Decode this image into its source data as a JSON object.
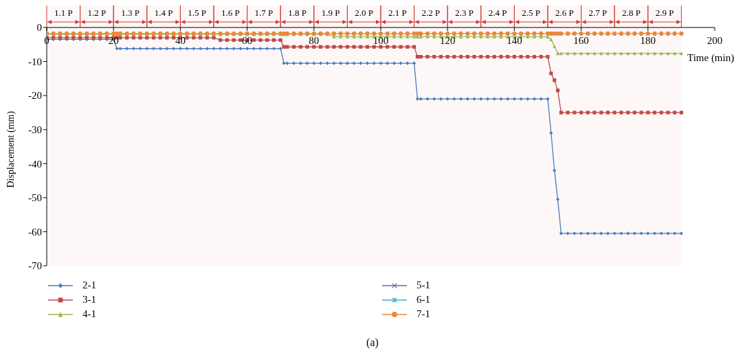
{
  "chart_data": {
    "type": "line",
    "xlabel": "Time (min)",
    "ylabel": "Displacement (mm)",
    "annotations": [
      "(a)"
    ],
    "xlim": [
      0,
      200
    ],
    "xticks": [
      0,
      20,
      40,
      60,
      80,
      100,
      120,
      140,
      160,
      180,
      200
    ],
    "ylim": [
      -70,
      0
    ],
    "yticks": [
      0,
      -10,
      -20,
      -30,
      -40,
      -50,
      -60,
      -70
    ],
    "legend": "bottom",
    "x": [
      0,
      2,
      4,
      6,
      8,
      10,
      12,
      14,
      16,
      18,
      20,
      21,
      22,
      24,
      26,
      28,
      30,
      32,
      34,
      36,
      38,
      40,
      42,
      44,
      46,
      48,
      50,
      52,
      54,
      56,
      58,
      60,
      62,
      64,
      66,
      68,
      70,
      71,
      72,
      74,
      76,
      78,
      80,
      82,
      84,
      86,
      88,
      90,
      92,
      94,
      96,
      98,
      100,
      102,
      104,
      106,
      108,
      110,
      111,
      112,
      114,
      116,
      118,
      120,
      122,
      124,
      126,
      128,
      130,
      132,
      134,
      136,
      138,
      140,
      142,
      144,
      146,
      148,
      150,
      151,
      152,
      153,
      154,
      156,
      158,
      160,
      162,
      164,
      166,
      168,
      170,
      172,
      174,
      176,
      178,
      180,
      182,
      184,
      186,
      188,
      190
    ],
    "series": [
      {
        "name": "2-1",
        "color": "#4a7ebb",
        "marker": "diamond",
        "values": [
          -3.5,
          -3.5,
          -3.5,
          -3.5,
          -3.5,
          -3.5,
          -3.5,
          -3.5,
          -3.5,
          -3.5,
          -3.5,
          -6.2,
          -6.2,
          -6.2,
          -6.2,
          -6.2,
          -6.2,
          -6.2,
          -6.2,
          -6.2,
          -6.2,
          -6.2,
          -6.2,
          -6.2,
          -6.2,
          -6.2,
          -6.2,
          -6.2,
          -6.2,
          -6.2,
          -6.2,
          -6.2,
          -6.2,
          -6.2,
          -6.2,
          -6.2,
          -6.2,
          -10.5,
          -10.5,
          -10.5,
          -10.5,
          -10.5,
          -10.5,
          -10.5,
          -10.5,
          -10.5,
          -10.5,
          -10.5,
          -10.5,
          -10.5,
          -10.5,
          -10.5,
          -10.5,
          -10.5,
          -10.5,
          -10.5,
          -10.5,
          -10.5,
          -21,
          -21,
          -21,
          -21,
          -21,
          -21,
          -21,
          -21,
          -21,
          -21,
          -21,
          -21,
          -21,
          -21,
          -21,
          -21,
          -21,
          -21,
          -21,
          -21,
          -21,
          -31,
          -42,
          -50.5,
          -60.5,
          -60.5,
          -60.5,
          -60.5,
          -60.5,
          -60.5,
          -60.5,
          -60.5,
          -60.5,
          -60.5,
          -60.5,
          -60.5,
          -60.5,
          -60.5,
          -60.5,
          -60.5,
          -60.5,
          -60.5,
          -60.5
        ]
      },
      {
        "name": "3-1",
        "color": "#be4b48",
        "marker": "square",
        "values": [
          -3,
          -3,
          -3,
          -3,
          -3,
          -3,
          -3,
          -3,
          -3,
          -3,
          -3,
          -3,
          -3,
          -3,
          -3,
          -3,
          -3,
          -3,
          -3,
          -3,
          -3,
          -3,
          -3,
          -3,
          -3,
          -3,
          -3,
          -3.7,
          -3.7,
          -3.7,
          -3.7,
          -3.7,
          -3.7,
          -3.7,
          -3.7,
          -3.7,
          -3.7,
          -5.7,
          -5.7,
          -5.7,
          -5.7,
          -5.7,
          -5.7,
          -5.7,
          -5.7,
          -5.7,
          -5.7,
          -5.7,
          -5.7,
          -5.7,
          -5.7,
          -5.7,
          -5.7,
          -5.7,
          -5.7,
          -5.7,
          -5.7,
          -5.7,
          -8.6,
          -8.6,
          -8.6,
          -8.6,
          -8.6,
          -8.6,
          -8.6,
          -8.6,
          -8.6,
          -8.6,
          -8.6,
          -8.6,
          -8.6,
          -8.6,
          -8.6,
          -8.6,
          -8.6,
          -8.6,
          -8.6,
          -8.6,
          -8.6,
          -13.5,
          -15.5,
          -18.5,
          -25,
          -25,
          -25,
          -25,
          -25,
          -25,
          -25,
          -25,
          -25,
          -25,
          -25,
          -25,
          -25,
          -25,
          -25,
          -25,
          -25,
          -25,
          -25
        ]
      },
      {
        "name": "4-1",
        "color": "#98b954",
        "marker": "triangle",
        "values": [
          -2,
          -2,
          -2,
          -2,
          -2,
          -2,
          -2,
          -2,
          -2,
          -2,
          -2,
          -2,
          -2,
          -2,
          -2,
          -2,
          -2,
          -2,
          -2,
          -2,
          -2,
          -2,
          -2,
          -2,
          -2,
          -2,
          -2,
          -2,
          -2,
          -2,
          -2,
          -2,
          -2,
          -2,
          -2,
          -2,
          -2,
          -2,
          -2,
          -2,
          -2,
          -2,
          -2,
          -2,
          -2,
          -2.7,
          -2.7,
          -2.7,
          -2.7,
          -2.7,
          -2.7,
          -2.7,
          -2.7,
          -2.7,
          -2.7,
          -2.7,
          -2.7,
          -2.7,
          -2.7,
          -2.7,
          -2.7,
          -2.7,
          -2.7,
          -2.7,
          -2.7,
          -2.7,
          -2.7,
          -2.7,
          -2.7,
          -2.7,
          -2.7,
          -2.7,
          -2.7,
          -2.7,
          -2.7,
          -2.7,
          -2.7,
          -2.7,
          -2.7,
          -3.5,
          -5.5,
          -7.6,
          -7.6,
          -7.6,
          -7.6,
          -7.6,
          -7.6,
          -7.6,
          -7.6,
          -7.6,
          -7.6,
          -7.6,
          -7.6,
          -7.6,
          -7.6,
          -7.6,
          -7.6,
          -7.6,
          -7.6,
          -7.6,
          -7.6
        ]
      },
      {
        "name": "5-1",
        "color": "#7d60a0",
        "marker": "cross",
        "values": [
          null,
          null,
          null,
          null,
          null,
          null,
          null,
          null,
          null,
          null,
          null,
          null,
          null,
          null,
          null,
          null,
          null,
          null,
          null,
          null,
          null,
          null,
          null,
          null,
          null,
          null,
          null,
          null,
          null,
          null,
          null,
          null,
          null,
          null,
          null,
          null,
          null,
          null,
          null,
          null,
          null,
          null,
          null,
          null,
          null,
          null,
          null,
          null,
          null,
          null,
          null,
          null,
          null,
          null,
          null,
          null,
          null,
          null,
          null,
          null,
          null,
          null,
          null,
          null,
          null,
          null,
          null,
          null,
          null,
          null,
          null,
          null,
          null,
          null,
          null,
          null,
          null,
          null,
          null,
          null,
          null,
          null,
          null,
          null,
          null,
          null,
          null,
          null,
          null,
          null,
          null,
          null,
          null,
          null,
          null,
          null,
          null,
          null,
          null,
          null,
          null
        ]
      },
      {
        "name": "6-1",
        "color": "#46aac5",
        "marker": "star",
        "values": [
          null,
          null,
          null,
          null,
          null,
          null,
          null,
          null,
          null,
          null,
          null,
          null,
          null,
          null,
          null,
          null,
          null,
          null,
          null,
          null,
          null,
          null,
          null,
          null,
          null,
          null,
          null,
          null,
          null,
          null,
          null,
          null,
          null,
          null,
          null,
          null,
          null,
          null,
          null,
          null,
          null,
          null,
          null,
          null,
          null,
          null,
          null,
          null,
          null,
          null,
          null,
          null,
          null,
          null,
          null,
          null,
          null,
          null,
          null,
          null,
          null,
          null,
          null,
          null,
          null,
          null,
          null,
          null,
          null,
          null,
          null,
          null,
          null,
          null,
          null,
          null,
          null,
          null,
          null,
          null,
          null,
          null,
          null,
          null,
          null,
          null,
          null,
          null,
          null,
          null,
          null,
          null,
          null,
          null,
          null,
          null,
          null,
          null,
          null,
          null,
          null
        ]
      },
      {
        "name": "7-1",
        "color": "#e8883a",
        "marker": "circle",
        "values": [
          -1.8,
          -1.8,
          -1.8,
          -1.8,
          -1.8,
          -1.8,
          -1.8,
          -1.8,
          -1.8,
          -1.8,
          -1.8,
          -1.8,
          -1.8,
          -1.8,
          -1.8,
          -1.8,
          -1.8,
          -1.8,
          -1.8,
          -1.8,
          -1.8,
          -1.8,
          -1.8,
          -1.8,
          -1.8,
          -1.8,
          -1.8,
          -1.8,
          -1.8,
          -1.8,
          -1.8,
          -1.8,
          -1.8,
          -1.8,
          -1.8,
          -1.8,
          -1.8,
          -1.8,
          -1.8,
          -1.8,
          -1.8,
          -1.8,
          -1.8,
          -1.8,
          -1.8,
          -1.8,
          -1.8,
          -1.8,
          -1.8,
          -1.8,
          -1.8,
          -1.8,
          -1.8,
          -1.8,
          -1.8,
          -1.8,
          -1.8,
          -1.8,
          -1.8,
          -1.8,
          -1.8,
          -1.8,
          -1.8,
          -1.8,
          -1.8,
          -1.8,
          -1.8,
          -1.8,
          -1.8,
          -1.8,
          -1.8,
          -1.8,
          -1.8,
          -1.8,
          -1.8,
          -1.8,
          -1.8,
          -1.8,
          -1.8,
          -1.8,
          -1.8,
          -1.8,
          -1.8,
          -1.8,
          -1.8,
          -1.8,
          -1.8,
          -1.8,
          -1.8,
          -1.8,
          -1.8,
          -1.8,
          -1.8,
          -1.8,
          -1.8,
          -1.8,
          -1.8,
          -1.8,
          -1.8,
          -1.8,
          -1.8
        ]
      }
    ],
    "bands": [
      {
        "axis": "x",
        "from": 0,
        "to": 10,
        "label": "1.1 P",
        "color": "#d13b30"
      },
      {
        "axis": "x",
        "from": 10,
        "to": 20,
        "label": "1.2 P",
        "color": "#d13b30"
      },
      {
        "axis": "x",
        "from": 20,
        "to": 30,
        "label": "1.3 P",
        "color": "#d13b30"
      },
      {
        "axis": "x",
        "from": 30,
        "to": 40,
        "label": "1.4 P",
        "color": "#d13b30"
      },
      {
        "axis": "x",
        "from": 40,
        "to": 50,
        "label": "1.5 P",
        "color": "#d13b30"
      },
      {
        "axis": "x",
        "from": 50,
        "to": 60,
        "label": "1.6 P",
        "color": "#d13b30"
      },
      {
        "axis": "x",
        "from": 60,
        "to": 70,
        "label": "1.7 P",
        "color": "#d13b30"
      },
      {
        "axis": "x",
        "from": 70,
        "to": 80,
        "label": "1.8 P",
        "color": "#d13b30"
      },
      {
        "axis": "x",
        "from": 80,
        "to": 90,
        "label": "1.9 P",
        "color": "#d13b30"
      },
      {
        "axis": "x",
        "from": 90,
        "to": 100,
        "label": "2.0 P",
        "color": "#d13b30"
      },
      {
        "axis": "x",
        "from": 100,
        "to": 110,
        "label": "2.1 P",
        "color": "#d13b30"
      },
      {
        "axis": "x",
        "from": 110,
        "to": 120,
        "label": "2.2 P",
        "color": "#d13b30"
      },
      {
        "axis": "x",
        "from": 120,
        "to": 130,
        "label": "2.3 P",
        "color": "#d13b30"
      },
      {
        "axis": "x",
        "from": 130,
        "to": 140,
        "label": "2.4 P",
        "color": "#d13b30"
      },
      {
        "axis": "x",
        "from": 140,
        "to": 150,
        "label": "2.5 P",
        "color": "#d13b30"
      },
      {
        "axis": "x",
        "from": 150,
        "to": 160,
        "label": "2.6 P",
        "color": "#d13b30"
      },
      {
        "axis": "x",
        "from": 160,
        "to": 170,
        "label": "2.7 P",
        "color": "#d13b30"
      },
      {
        "axis": "x",
        "from": 170,
        "to": 180,
        "label": "2.8 P",
        "color": "#d13b30"
      },
      {
        "axis": "x",
        "from": 180,
        "to": 190,
        "label": "2.9 P",
        "color": "#d13b30"
      }
    ]
  }
}
